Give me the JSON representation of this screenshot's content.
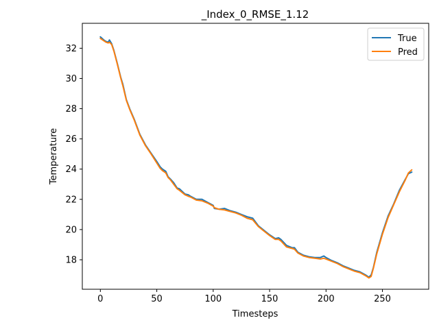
{
  "chart_data": {
    "type": "line",
    "title": "_Index_0_RMSE_1.12",
    "xlabel": "Timesteps",
    "ylabel": "Temperature",
    "xlim": [
      -16,
      291
    ],
    "ylim": [
      16.05,
      33.65
    ],
    "xticks": [
      0,
      50,
      100,
      150,
      200,
      250
    ],
    "yticks": [
      18,
      20,
      22,
      24,
      26,
      28,
      30,
      32
    ],
    "grid": false,
    "legend_position": "top-right",
    "series": [
      {
        "name": "True",
        "color": "#1f77b4",
        "x": [
          0,
          3,
          5,
          7,
          8,
          10,
          12,
          15,
          18,
          20,
          23,
          26,
          30,
          35,
          40,
          45,
          50,
          53,
          55,
          58,
          60,
          62,
          65,
          68,
          70,
          75,
          78,
          80,
          85,
          90,
          95,
          100,
          101,
          105,
          110,
          115,
          120,
          125,
          130,
          135,
          140,
          145,
          150,
          155,
          158,
          160,
          165,
          170,
          172,
          175,
          180,
          185,
          190,
          195,
          198,
          200,
          205,
          210,
          215,
          220,
          225,
          230,
          235,
          238,
          240,
          242,
          245,
          250,
          255,
          260,
          265,
          270,
          273,
          276
        ],
        "values": [
          32.75,
          32.55,
          32.45,
          32.4,
          32.55,
          32.3,
          31.85,
          31.0,
          30.1,
          29.6,
          28.6,
          28.0,
          27.3,
          26.3,
          25.6,
          25.05,
          24.5,
          24.15,
          24.0,
          23.85,
          23.5,
          23.35,
          23.1,
          22.75,
          22.7,
          22.35,
          22.3,
          22.2,
          22.0,
          22.0,
          21.8,
          21.6,
          21.4,
          21.35,
          21.4,
          21.25,
          21.15,
          21.0,
          20.85,
          20.75,
          20.25,
          19.95,
          19.65,
          19.4,
          19.45,
          19.35,
          18.95,
          18.8,
          18.8,
          18.5,
          18.3,
          18.2,
          18.15,
          18.15,
          18.25,
          18.15,
          17.95,
          17.8,
          17.6,
          17.45,
          17.3,
          17.2,
          17.0,
          16.85,
          17.0,
          17.5,
          18.5,
          19.8,
          20.9,
          21.7,
          22.6,
          23.3,
          23.7,
          23.8
        ]
      },
      {
        "name": "Pred",
        "color": "#ff7f0e",
        "x": [
          0,
          3,
          5,
          7,
          8,
          10,
          12,
          15,
          18,
          20,
          23,
          26,
          30,
          35,
          40,
          45,
          50,
          53,
          55,
          58,
          60,
          62,
          65,
          68,
          70,
          75,
          78,
          80,
          85,
          90,
          95,
          100,
          101,
          105,
          110,
          115,
          120,
          125,
          130,
          135,
          140,
          145,
          150,
          155,
          158,
          160,
          165,
          170,
          172,
          175,
          180,
          185,
          190,
          195,
          198,
          200,
          205,
          210,
          215,
          220,
          225,
          230,
          235,
          238,
          240,
          242,
          245,
          250,
          255,
          260,
          265,
          270,
          273,
          276
        ],
        "values": [
          32.65,
          32.5,
          32.4,
          32.35,
          32.4,
          32.25,
          31.8,
          30.95,
          30.05,
          29.5,
          28.55,
          27.95,
          27.25,
          26.25,
          25.55,
          25.0,
          24.4,
          24.05,
          23.9,
          23.75,
          23.45,
          23.3,
          23.0,
          22.7,
          22.6,
          22.3,
          22.2,
          22.15,
          21.95,
          21.9,
          21.75,
          21.55,
          21.45,
          21.35,
          21.3,
          21.2,
          21.1,
          20.95,
          20.75,
          20.65,
          20.2,
          19.9,
          19.6,
          19.35,
          19.35,
          19.25,
          18.85,
          18.75,
          18.7,
          18.45,
          18.25,
          18.15,
          18.1,
          18.05,
          18.1,
          18.05,
          17.9,
          17.75,
          17.55,
          17.4,
          17.25,
          17.15,
          16.95,
          16.8,
          16.9,
          17.45,
          18.4,
          19.7,
          20.8,
          21.65,
          22.5,
          23.25,
          23.75,
          23.95
        ]
      }
    ]
  }
}
